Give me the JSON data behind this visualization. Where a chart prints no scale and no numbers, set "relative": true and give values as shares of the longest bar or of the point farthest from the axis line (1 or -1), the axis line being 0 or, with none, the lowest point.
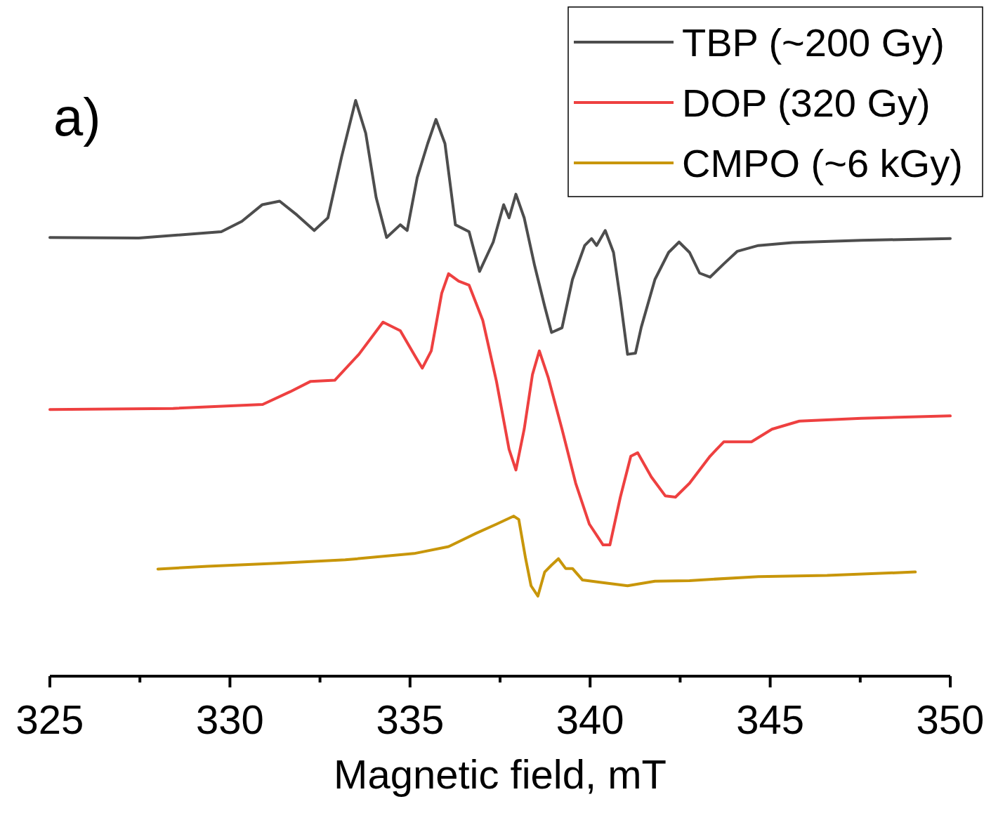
{
  "chart_data": {
    "type": "line",
    "relative": true,
    "xlabel": "Magnetic field, mT",
    "annotations": [
      "a)"
    ],
    "xlim": [
      325,
      350
    ],
    "xticks": [
      325,
      {
        "value": 327.5,
        "label": null
      },
      330,
      {
        "value": 332.5,
        "label": null
      },
      335,
      {
        "value": 337.5,
        "label": null
      },
      340,
      {
        "value": 342.5,
        "label": null
      },
      345,
      {
        "value": 347.5,
        "label": null
      },
      350
    ],
    "legend": "top right",
    "grid": false,
    "marker": "none",
    "line_style": "solid",
    "series": [
      {
        "name": "TBP (~200 Gy)",
        "color": "#4d4d4d",
        "x": [
          325,
          327.47,
          329.76,
          330.33,
          330.9,
          331.38,
          331.86,
          332.34,
          332.72,
          333.1,
          333.49,
          333.77,
          334.06,
          334.35,
          334.73,
          334.92,
          335.2,
          335.49,
          335.72,
          335.97,
          336.26,
          336.64,
          336.93,
          337.31,
          337.6,
          337.75,
          337.94,
          338.17,
          338.46,
          338.74,
          338.93,
          339.22,
          339.51,
          339.85,
          340.04,
          340.18,
          340.42,
          340.65,
          340.84,
          341.04,
          341.26,
          341.42,
          341.8,
          342.18,
          342.47,
          342.76,
          343.04,
          343.33,
          343.71,
          344.09,
          344.67,
          345.62,
          347.53,
          350
        ],
        "values": [
          0.762,
          0.761,
          0.772,
          0.79,
          0.819,
          0.825,
          0.801,
          0.774,
          0.796,
          0.902,
          1,
          0.943,
          0.831,
          0.762,
          0.784,
          0.774,
          0.866,
          0.925,
          0.967,
          0.925,
          0.784,
          0.772,
          0.703,
          0.754,
          0.819,
          0.796,
          0.837,
          0.796,
          0.713,
          0.642,
          0.597,
          0.605,
          0.689,
          0.748,
          0.76,
          0.748,
          0.774,
          0.736,
          0.654,
          0.559,
          0.561,
          0.606,
          0.689,
          0.736,
          0.754,
          0.736,
          0.7,
          0.693,
          0.716,
          0.738,
          0.748,
          0.753,
          0.757,
          0.76
        ]
      },
      {
        "name": "DOP (320 Gy)",
        "color": "#ee4040",
        "x": [
          325,
          328.42,
          330.91,
          331.67,
          332.24,
          332.91,
          333.58,
          334.25,
          334.73,
          335.11,
          335.34,
          335.59,
          335.88,
          336.07,
          336.35,
          336.64,
          337.02,
          337.4,
          337.75,
          337.94,
          338.17,
          338.4,
          338.59,
          338.84,
          339.22,
          339.6,
          339.98,
          340.36,
          340.55,
          340.84,
          341.13,
          341.32,
          341.7,
          342.09,
          342.37,
          342.76,
          343.33,
          343.71,
          344.48,
          345.05,
          345.81,
          347.53,
          350
        ],
        "values": [
          0.463,
          0.465,
          0.472,
          0.494,
          0.512,
          0.514,
          0.559,
          0.615,
          0.6,
          0.559,
          0.535,
          0.565,
          0.665,
          0.699,
          0.686,
          0.679,
          0.618,
          0.512,
          0.394,
          0.358,
          0.429,
          0.524,
          0.565,
          0.518,
          0.429,
          0.335,
          0.264,
          0.228,
          0.228,
          0.311,
          0.382,
          0.388,
          0.346,
          0.313,
          0.311,
          0.335,
          0.382,
          0.407,
          0.407,
          0.429,
          0.443,
          0.448,
          0.452
        ]
      },
      {
        "name": "CMPO (~6 kGy)",
        "color": "#c8960a",
        "x": [
          328,
          329.38,
          331.29,
          333.2,
          335.11,
          336.07,
          336.83,
          337.4,
          337.88,
          338.02,
          338.21,
          338.36,
          338.55,
          338.74,
          338.93,
          339.12,
          339.32,
          339.51,
          339.79,
          340.27,
          341.04,
          341.8,
          342.76,
          344.67,
          346.58,
          349.03
        ],
        "values": [
          0.186,
          0.191,
          0.196,
          0.202,
          0.213,
          0.225,
          0.248,
          0.264,
          0.278,
          0.272,
          0.204,
          0.157,
          0.139,
          0.181,
          0.193,
          0.204,
          0.187,
          0.187,
          0.167,
          0.163,
          0.157,
          0.165,
          0.166,
          0.173,
          0.175,
          0.181
        ]
      }
    ]
  }
}
